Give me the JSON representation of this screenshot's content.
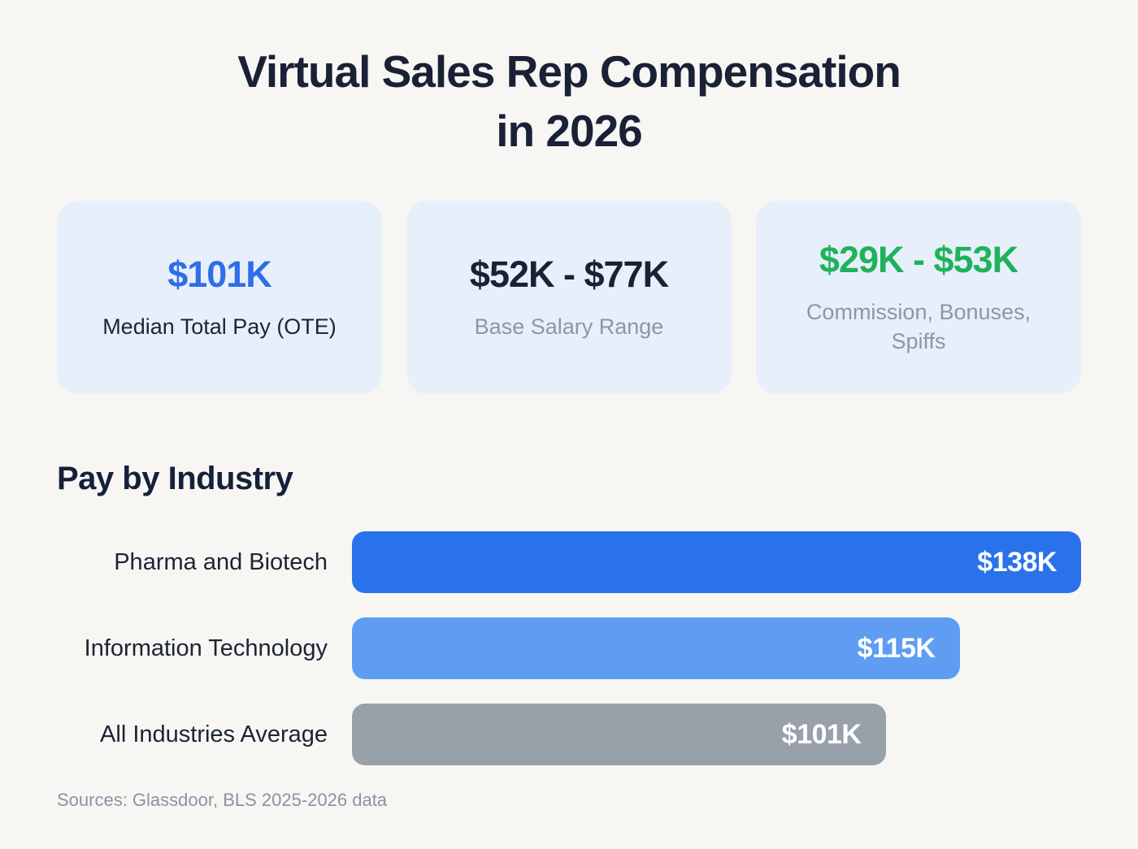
{
  "page": {
    "title_line1": "Virtual Sales Rep Compensation",
    "title_line2": "in 2026",
    "footer": "Sources: Glassdoor, BLS 2025-2026 data"
  },
  "stat_cards": [
    {
      "value": "$101K",
      "label": "Median Total Pay (OTE)",
      "value_color": "#2e6eea"
    },
    {
      "value": "$52K - $77K",
      "label": "Base Salary Range",
      "value_color": "#1a2136"
    },
    {
      "value": "$29K - $53K",
      "label": "Commission, Bonuses, Spiffs",
      "value_color": "#1fb25c"
    }
  ],
  "chart": {
    "heading": "Pay by Industry"
  },
  "chart_data": {
    "type": "bar",
    "orientation": "horizontal",
    "title": "Pay by Industry",
    "categories": [
      "Pharma and Biotech",
      "Information Technology",
      "All Industries Average"
    ],
    "values": [
      138,
      115,
      101
    ],
    "value_labels": [
      "$138K",
      "$115K",
      "$101K"
    ],
    "units": "USD thousands, total pay",
    "xlim": [
      0,
      138
    ],
    "bar_colors": [
      "#2a72ec",
      "#5f9df2",
      "#98a0aa"
    ],
    "grid": false,
    "legend": false
  },
  "colors": {
    "background": "#f7f6f3",
    "card_background": "#e7effa",
    "title_text": "#1a2136",
    "muted_text": "#8d96a5",
    "bar_value_text": "#ffffff"
  }
}
